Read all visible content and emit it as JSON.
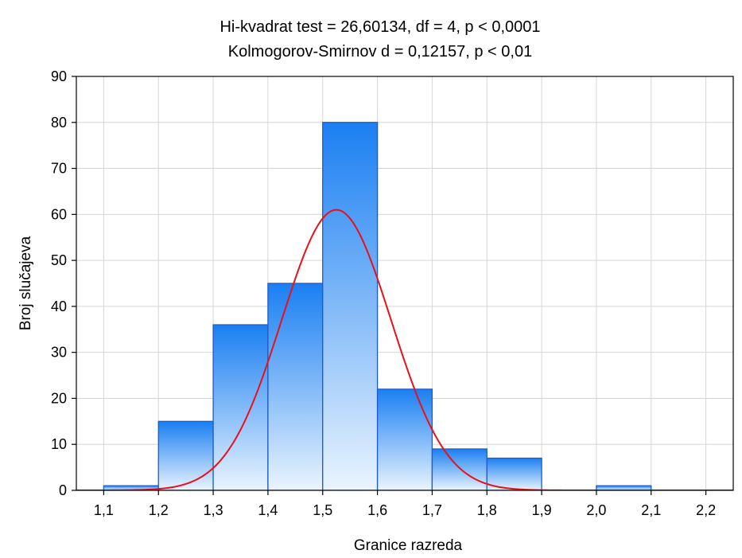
{
  "chart_data": {
    "type": "bar",
    "title": "Hi-kvadrat test = 26,60134, df = 4, p < 0,0001",
    "subtitle": "Kolmogorov-Smirnov d = 0,12157, p < 0,01",
    "xlabel": "Granice razreda",
    "ylabel": "Broj slučajeva",
    "xlim": [
      1.05,
      2.25
    ],
    "ylim": [
      0,
      90
    ],
    "x_ticks": [
      "1,1",
      "1,2",
      "1,3",
      "1,4",
      "1,5",
      "1,6",
      "1,7",
      "1,8",
      "1,9",
      "2,0",
      "2,1",
      "2,2"
    ],
    "y_ticks": [
      "0",
      "10",
      "20",
      "30",
      "40",
      "50",
      "60",
      "70",
      "80",
      "90"
    ],
    "bins": [
      {
        "from": 1.1,
        "to": 1.2,
        "value": 1
      },
      {
        "from": 1.2,
        "to": 1.3,
        "value": 15
      },
      {
        "from": 1.3,
        "to": 1.4,
        "value": 36
      },
      {
        "from": 1.4,
        "to": 1.5,
        "value": 45
      },
      {
        "from": 1.5,
        "to": 1.6,
        "value": 80
      },
      {
        "from": 1.6,
        "to": 1.7,
        "value": 22
      },
      {
        "from": 1.7,
        "to": 1.8,
        "value": 9
      },
      {
        "from": 1.8,
        "to": 1.9,
        "value": 7
      },
      {
        "from": 1.9,
        "to": 2.0,
        "value": 0
      },
      {
        "from": 2.0,
        "to": 2.1,
        "value": 1
      },
      {
        "from": 2.1,
        "to": 2.2,
        "value": 0
      }
    ],
    "fitted_curve": {
      "type": "normal",
      "mean": 1.525,
      "peak": 61,
      "sd": 0.1
    },
    "grid": true,
    "colors": {
      "bar_top": "#1a7ff2",
      "bar_bottom": "#eaf4fe",
      "bar_edge": "#1f5cc6",
      "curve": "#e8101b",
      "grid": "#d6d6d6"
    }
  }
}
